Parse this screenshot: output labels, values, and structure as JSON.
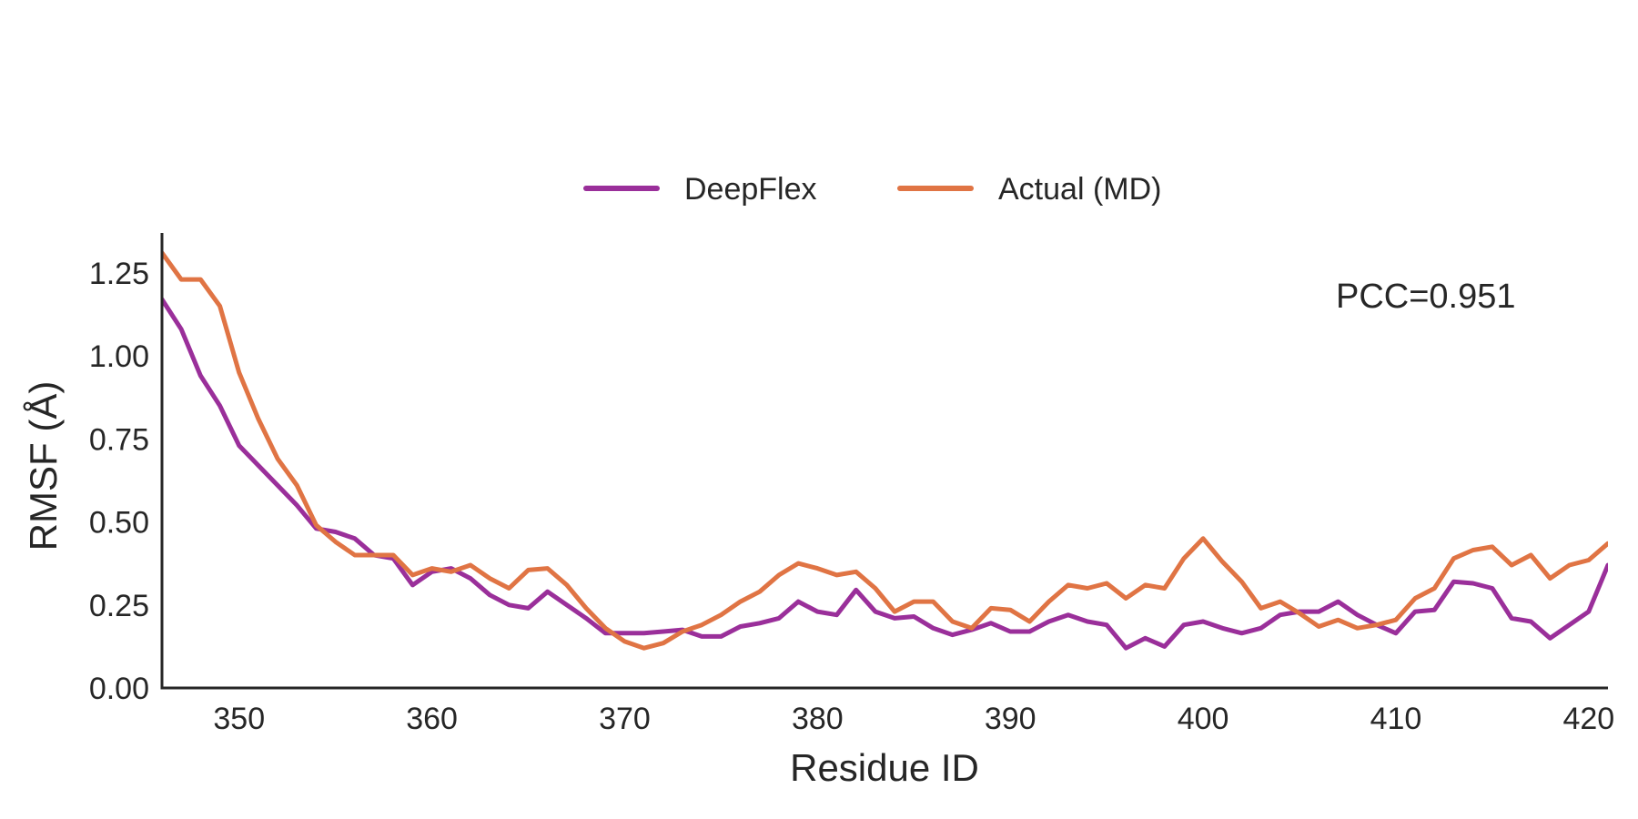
{
  "chart_data": {
    "type": "line",
    "title": "",
    "xlabel": "Residue ID",
    "ylabel": "RMSF (Å)",
    "xlim": [
      346,
      421
    ],
    "ylim": [
      0,
      1.37
    ],
    "xticks": [
      350,
      360,
      370,
      380,
      390,
      400,
      410,
      420
    ],
    "yticks": [
      0.0,
      0.25,
      0.5,
      0.75,
      1.0,
      1.25
    ],
    "ytick_labels": [
      "0.00",
      "0.25",
      "0.50",
      "0.75",
      "1.00",
      "1.25"
    ],
    "grid": false,
    "legend_position": "top-center",
    "annotation": "PCC=0.951",
    "x": [
      346,
      347,
      348,
      349,
      350,
      351,
      352,
      353,
      354,
      355,
      356,
      357,
      358,
      359,
      360,
      361,
      362,
      363,
      364,
      365,
      366,
      367,
      368,
      369,
      370,
      371,
      372,
      373,
      374,
      375,
      376,
      377,
      378,
      379,
      380,
      381,
      382,
      383,
      384,
      385,
      386,
      387,
      388,
      389,
      390,
      391,
      392,
      393,
      394,
      395,
      396,
      397,
      398,
      399,
      400,
      401,
      402,
      403,
      404,
      405,
      406,
      407,
      408,
      409,
      410,
      411,
      412,
      413,
      414,
      415,
      416,
      417,
      418,
      419,
      420,
      421
    ],
    "series": [
      {
        "name": "DeepFlex",
        "color": "#9a2f9a",
        "values": [
          1.17,
          1.08,
          0.94,
          0.85,
          0.73,
          0.67,
          0.61,
          0.55,
          0.48,
          0.47,
          0.45,
          0.4,
          0.39,
          0.31,
          0.35,
          0.36,
          0.33,
          0.28,
          0.25,
          0.24,
          0.29,
          0.25,
          0.21,
          0.165,
          0.165,
          0.165,
          0.17,
          0.175,
          0.155,
          0.155,
          0.185,
          0.195,
          0.21,
          0.26,
          0.23,
          0.22,
          0.295,
          0.23,
          0.21,
          0.215,
          0.18,
          0.16,
          0.175,
          0.195,
          0.17,
          0.17,
          0.2,
          0.22,
          0.2,
          0.19,
          0.12,
          0.15,
          0.125,
          0.19,
          0.2,
          0.18,
          0.165,
          0.18,
          0.22,
          0.23,
          0.23,
          0.26,
          0.22,
          0.19,
          0.165,
          0.23,
          0.235,
          0.32,
          0.315,
          0.3,
          0.21,
          0.2,
          0.15,
          0.19,
          0.23,
          0.37
        ]
      },
      {
        "name": "Actual (MD)",
        "color": "#e07444",
        "values": [
          1.31,
          1.23,
          1.23,
          1.15,
          0.95,
          0.81,
          0.69,
          0.61,
          0.49,
          0.44,
          0.4,
          0.4,
          0.4,
          0.34,
          0.36,
          0.35,
          0.37,
          0.33,
          0.3,
          0.355,
          0.36,
          0.31,
          0.24,
          0.18,
          0.14,
          0.12,
          0.135,
          0.17,
          0.19,
          0.22,
          0.26,
          0.29,
          0.34,
          0.375,
          0.36,
          0.34,
          0.35,
          0.3,
          0.23,
          0.26,
          0.26,
          0.2,
          0.18,
          0.24,
          0.235,
          0.2,
          0.26,
          0.31,
          0.3,
          0.315,
          0.27,
          0.31,
          0.3,
          0.39,
          0.45,
          0.38,
          0.32,
          0.24,
          0.26,
          0.225,
          0.185,
          0.205,
          0.18,
          0.19,
          0.205,
          0.27,
          0.3,
          0.39,
          0.415,
          0.425,
          0.37,
          0.4,
          0.33,
          0.37,
          0.385,
          0.435
        ]
      }
    ]
  }
}
